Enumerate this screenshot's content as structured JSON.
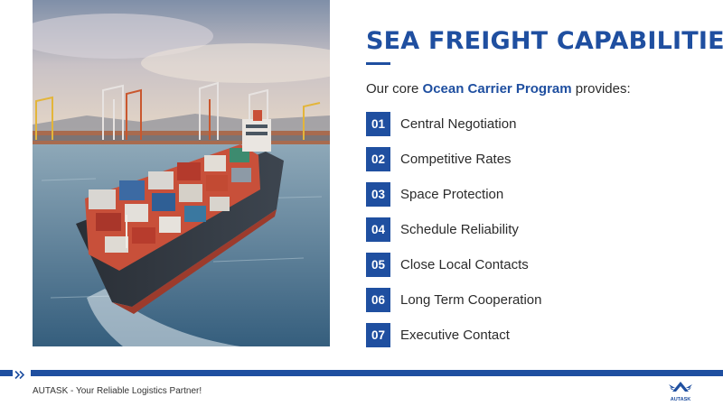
{
  "slide": {
    "title": "SEA FREIGHT CAPABILITIES",
    "intro": {
      "prefix": "Our core ",
      "highlight": "Ocean Carrier Program",
      "suffix": " provides:"
    },
    "capabilities": [
      {
        "number": "01",
        "label": "Central Negotiation"
      },
      {
        "number": "02",
        "label": "Competitive Rates"
      },
      {
        "number": "03",
        "label": "Space Protection"
      },
      {
        "number": "04",
        "label": "Schedule Reliability"
      },
      {
        "number": "05",
        "label": "Close Local Contacts"
      },
      {
        "number": "06",
        "label": "Long Term Cooperation"
      },
      {
        "number": "07",
        "label": "Executive Contact"
      }
    ]
  },
  "footer": {
    "tagline": "AUTASK - Your Reliable Logistics Partner!",
    "logo_text": "AUTASK"
  },
  "colors": {
    "brand_blue": "#1f4fa0",
    "text": "#2b2b2b",
    "background": "#ffffff"
  },
  "icons": {
    "photo": "container-ship-photo",
    "footer_mark": "double-chevron-right-icon",
    "logo": "autask-wing-logo"
  }
}
